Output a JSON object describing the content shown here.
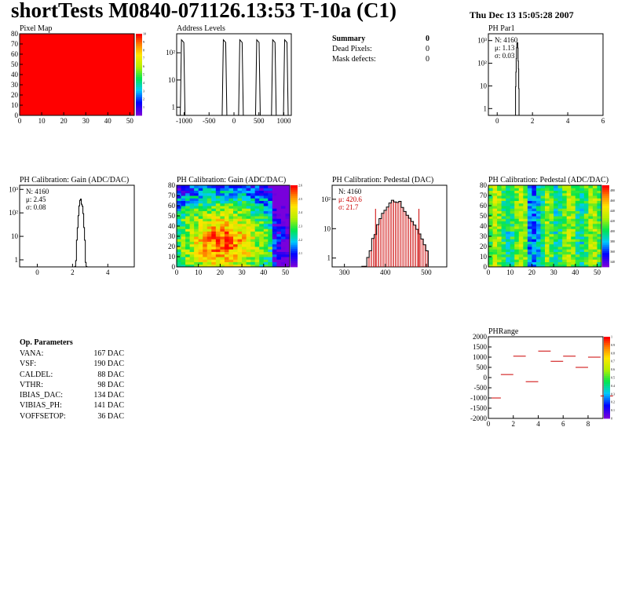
{
  "header": {
    "title": "shortTests M0840-071126.13:53 T-10a (C1)",
    "date": "Thu Dec 13 15:05:28 2007"
  },
  "colors": {
    "histogram": "#000000",
    "fit": "#cc0000",
    "map_fill": "#ff0000"
  },
  "summary": {
    "title": "Summary",
    "title_value": "0",
    "rows": [
      {
        "label": "Dead Pixels:",
        "value": "0"
      },
      {
        "label": "Mask defects:",
        "value": "0"
      }
    ]
  },
  "op_params": {
    "title": "Op. Parameters",
    "rows": [
      {
        "label": "VANA:",
        "value": "167 DAC"
      },
      {
        "label": "VSF:",
        "value": "190 DAC"
      },
      {
        "label": "CALDEL:",
        "value": "88 DAC"
      },
      {
        "label": "VTHR:",
        "value": "98 DAC"
      },
      {
        "label": "IBIAS_DAC:",
        "value": "134 DAC"
      },
      {
        "label": "VIBIAS_PH:",
        "value": "141 DAC"
      },
      {
        "label": "VOFFSETOP:",
        "value": "36 DAC"
      }
    ]
  },
  "chart_data": [
    {
      "id": "pixelmap",
      "type": "heatmap",
      "title": "Pixel Map",
      "xlim": [
        0,
        52
      ],
      "ylim": [
        0,
        80
      ],
      "xticks": [
        "0",
        "10",
        "20",
        "30",
        "40",
        "50"
      ],
      "yticks": [
        "0",
        "10",
        "20",
        "30",
        "40",
        "50",
        "60",
        "70",
        "80"
      ],
      "uniform_value": 10,
      "zlim": [
        0,
        10
      ],
      "zticks": [
        "1",
        "2",
        "3",
        "4",
        "5",
        "6",
        "7",
        "8",
        "9",
        "10"
      ]
    },
    {
      "id": "address",
      "type": "bar",
      "title": "Address Levels",
      "log_y": true,
      "xlim": [
        -1150,
        1150
      ],
      "ylim": [
        0.5,
        500
      ],
      "xticks": [
        "-1000",
        "-500",
        "0",
        "500",
        "1000"
      ],
      "yticks": [
        "1",
        "10",
        "10²"
      ],
      "peaks": [
        {
          "x": -1030,
          "height": 300
        },
        {
          "x": -190,
          "height": 300
        },
        {
          "x": 140,
          "height": 300
        },
        {
          "x": 480,
          "height": 300
        },
        {
          "x": 800,
          "height": 300
        },
        {
          "x": 1040,
          "height": 300
        }
      ]
    },
    {
      "id": "phpar1",
      "type": "bar",
      "title": "PH Par1",
      "log_y": true,
      "xlim": [
        -0.5,
        6
      ],
      "ylim": [
        0.5,
        2000
      ],
      "xticks": [
        "0",
        "2",
        "4",
        "6"
      ],
      "yticks": [
        "1",
        "10",
        "10²",
        "10³"
      ],
      "stats": [
        "N: 4160",
        "μ: 1.13",
        "σ: 0.03"
      ],
      "mean": 1.13,
      "sigma": 0.03,
      "peak": 800
    },
    {
      "id": "gain1d",
      "type": "bar",
      "title": "PH Calibration: Gain (ADC/DAC)",
      "log_y": true,
      "xlim": [
        -1,
        5.5
      ],
      "ylim": [
        0.5,
        1500
      ],
      "xticks": [
        "0",
        "2",
        "4"
      ],
      "yticks": [
        "1",
        "10",
        "10²",
        "10³"
      ],
      "stats": [
        "N: 4160",
        "μ: 2.45",
        "σ: 0.08"
      ],
      "mean": 2.45,
      "sigma": 0.08,
      "peak": 350
    },
    {
      "id": "gainmap",
      "type": "heatmap",
      "title": "PH Calibration: Gain (ADC/DAC)",
      "xlim": [
        0,
        52
      ],
      "ylim": [
        0,
        80
      ],
      "xticks": [
        "0",
        "10",
        "20",
        "30",
        "40",
        "50"
      ],
      "yticks": [
        "0",
        "10",
        "20",
        "30",
        "40",
        "50",
        "60",
        "70",
        "80"
      ],
      "zlim": [
        2.0,
        2.6
      ],
      "zticks": [
        "2.1",
        "2.2",
        "2.3",
        "2.4",
        "2.5",
        "2.6"
      ]
    },
    {
      "id": "ped1d",
      "type": "bar",
      "title": "PH Calibration: Pedestal (DAC)",
      "log_y": true,
      "xlim": [
        270,
        550
      ],
      "ylim": [
        0.5,
        300
      ],
      "xticks": [
        "300",
        "400",
        "500"
      ],
      "yticks": [
        "1",
        "10",
        "10²"
      ],
      "stats": [
        "N: 4160",
        "μ: 420.6",
        "σ: 21.7"
      ],
      "stats_fit_rows": [
        1,
        2
      ],
      "mean": 420.6,
      "sigma": 21.7,
      "peak": 90,
      "fit_range": [
        376,
        482
      ]
    },
    {
      "id": "pedmap",
      "type": "heatmap",
      "title": "PH Calibration: Pedestal (ADC/DAC)",
      "xlim": [
        0,
        52
      ],
      "ylim": [
        0,
        80
      ],
      "xticks": [
        "0",
        "10",
        "20",
        "30",
        "40",
        "50"
      ],
      "yticks": [
        "0",
        "10",
        "20",
        "30",
        "40",
        "50",
        "60",
        "70",
        "80"
      ],
      "zlim": [
        330,
        490
      ],
      "zticks": [
        "340",
        "360",
        "380",
        "400",
        "420",
        "440",
        "460",
        "480"
      ]
    },
    {
      "id": "phrange",
      "type": "scatter",
      "title": "PHRange",
      "xlim": [
        0,
        9.2
      ],
      "ylim": [
        -2000,
        2000
      ],
      "xticks": [
        "0",
        "2",
        "4",
        "6",
        "8"
      ],
      "yticks": [
        "-2000",
        "-1500",
        "-1000",
        "-500",
        "0",
        "500",
        "1000",
        "1500",
        "2000"
      ],
      "zlim": [
        0,
        1
      ],
      "zticks": [
        "0",
        "0.1",
        "0.2",
        "0.3",
        "0.4",
        "0.5",
        "0.6",
        "0.7",
        "0.8",
        "0.9",
        "1"
      ],
      "segments": [
        {
          "x": 0,
          "y": -1000
        },
        {
          "x": 1,
          "y": 150
        },
        {
          "x": 2,
          "y": 1050
        },
        {
          "x": 3,
          "y": -200
        },
        {
          "x": 4,
          "y": 1300
        },
        {
          "x": 5,
          "y": 800
        },
        {
          "x": 6,
          "y": 1050
        },
        {
          "x": 7,
          "y": 500
        },
        {
          "x": 8,
          "y": 1000
        },
        {
          "x": 9,
          "y": -900
        }
      ]
    }
  ]
}
